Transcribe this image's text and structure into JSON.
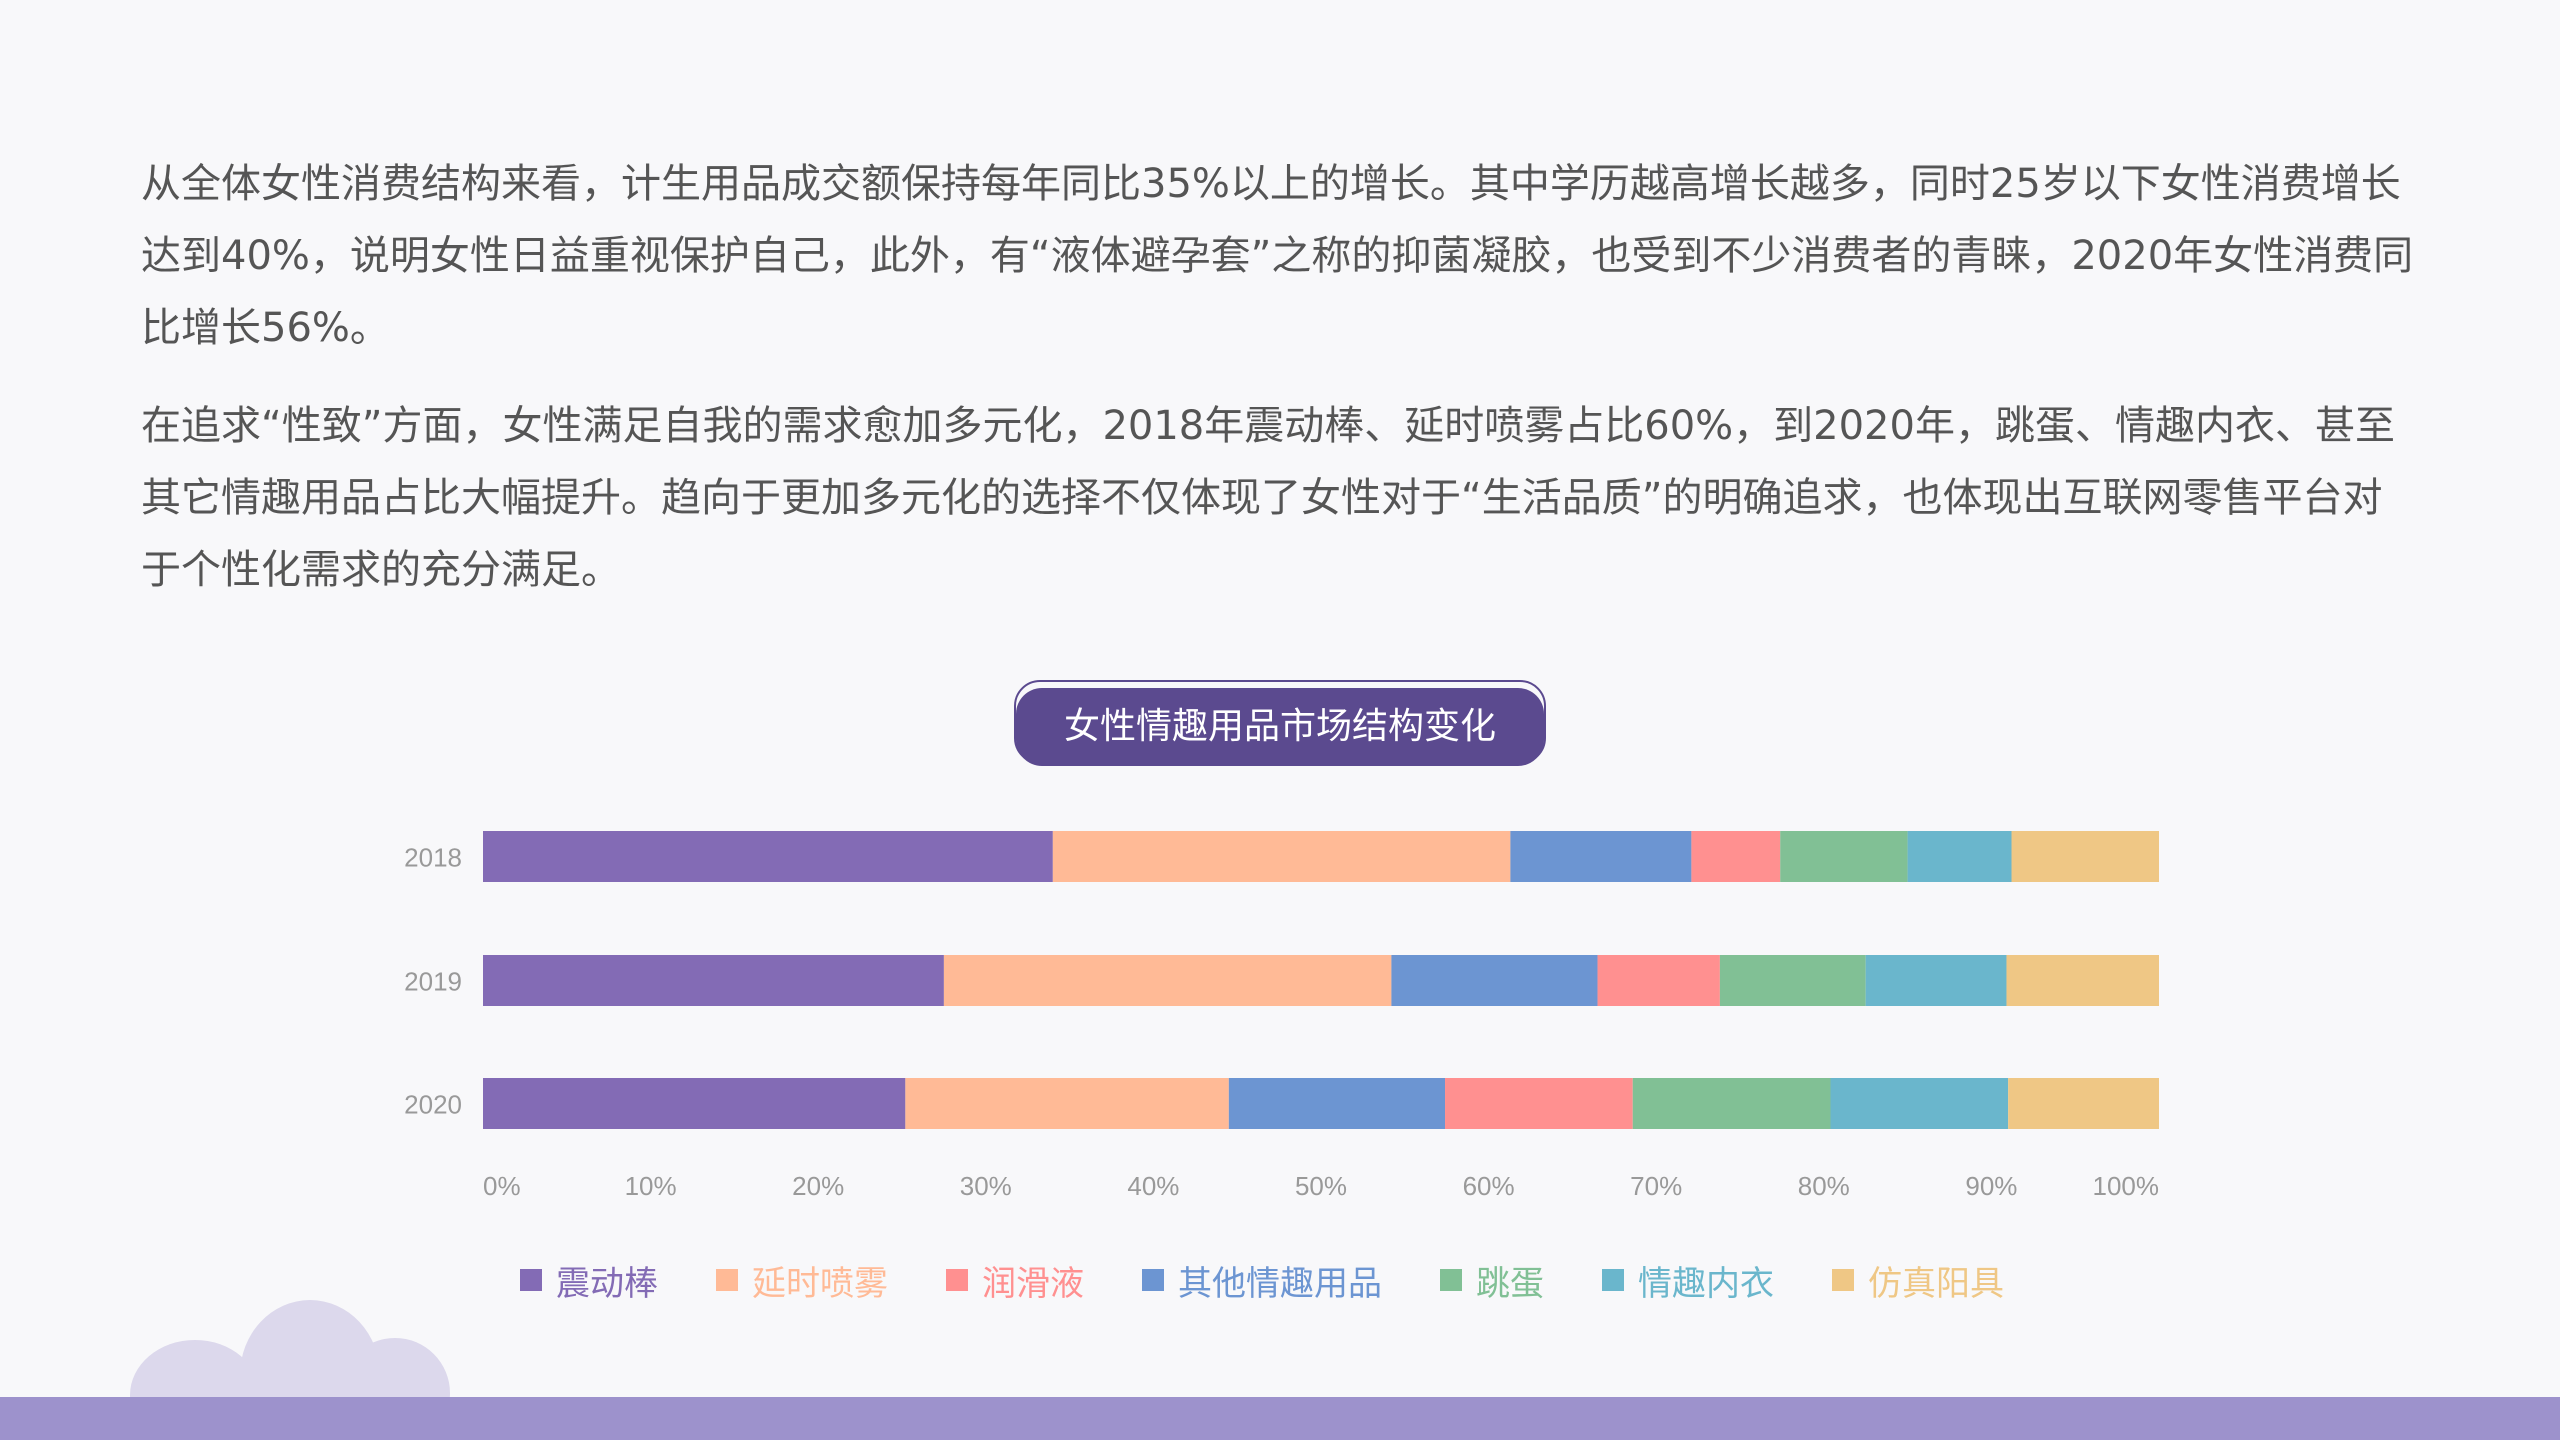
{
  "paragraphs": [
    "从全体女性消费结构来看，计生用品成交额保持每年同比35%以上的增长。其中学历越高增长越多，同时25岁以下女性消费增长达到40%，说明女性日益重视保护自己，此外，有“液体避孕套”之称的抑菌凝胶，也受到不少消费者的青睐，2020年女性消费同比增长56%。",
    "在追求“性致”方面，女性满足自我的需求愈加多元化，2018年震动棒、延时喷雾占比60%，到2020年，跳蛋、情趣内衣、甚至其它情趣用品占比大幅提升。趋向于更加多元化的选择不仅体现了女性对于“生活品质”的明确追求，也体现出互联网零售平台对于个性化需求的充分满足。"
  ],
  "colors": {
    "accent": "#5b4a8f",
    "bottom_bar": "#9d92cc",
    "cloud": "#dcd8ec",
    "text": "#555555",
    "axis_text": "#999999"
  },
  "chart_data": {
    "type": "bar",
    "orientation": "horizontal",
    "stacked": true,
    "title": "女性情趣用品市场结构变化",
    "categories": [
      "2018",
      "2019",
      "2020"
    ],
    "xlim": [
      0,
      100
    ],
    "x_ticks": [
      "0%",
      "10%",
      "20%",
      "30%",
      "40%",
      "50%",
      "60%",
      "70%",
      "80%",
      "90%",
      "100%"
    ],
    "grid": false,
    "legend_position": "bottom",
    "series": [
      {
        "name": "震动棒",
        "color": "#836bb5",
        "values": [
          34,
          27.5,
          25.2
        ]
      },
      {
        "name": "延时喷雾",
        "color": "#ffba96",
        "values": [
          27.3,
          26.7,
          19.3
        ]
      },
      {
        "name": "其他情趣用品",
        "color": "#6c95d2",
        "values": [
          10.8,
          12.3,
          12.9
        ]
      },
      {
        "name": "润滑液",
        "color": "#ff9090",
        "values": [
          5.3,
          7.3,
          11.2
        ]
      },
      {
        "name": "跳蛋",
        "color": "#81c095",
        "values": [
          7.6,
          8.7,
          11.8
        ]
      },
      {
        "name": "情趣内衣",
        "color": "#6ab6cc",
        "values": [
          6.2,
          8.4,
          10.6
        ]
      },
      {
        "name": "仿真阳具",
        "color": "#efc785",
        "values": [
          8.8,
          9.1,
          9.0
        ]
      }
    ],
    "legend_order": [
      "震动棒",
      "延时喷雾",
      "润滑液",
      "其他情趣用品",
      "跳蛋",
      "情趣内衣",
      "仿真阳具"
    ]
  }
}
